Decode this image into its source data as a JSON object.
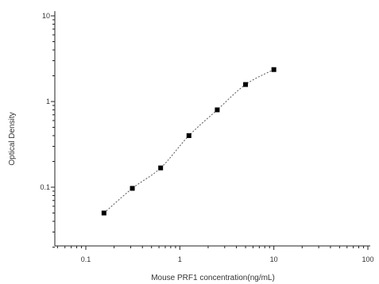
{
  "chart_data": {
    "type": "scatter",
    "xlabel": "Mouse PRF1 concentration(ng/mL)",
    "ylabel": "Optical Density",
    "x_scale": "log",
    "y_scale": "log",
    "xlim": [
      0.05,
      100
    ],
    "ylim": [
      0.015,
      10
    ],
    "x_ticks": [
      0.1,
      1,
      10,
      100
    ],
    "x_tick_labels": [
      "0.1",
      "1",
      "10",
      "100"
    ],
    "y_ticks": [
      0.1,
      1,
      10
    ],
    "y_tick_labels": [
      "0.1",
      "1",
      "10"
    ],
    "grid": false,
    "series": [
      {
        "marker": "square",
        "color": "#000000",
        "x": [
          0.156,
          0.3125,
          0.625,
          1.25,
          2.5,
          5,
          10
        ],
        "y": [
          0.05,
          0.097,
          0.168,
          0.4,
          0.8,
          1.58,
          2.36
        ]
      }
    ],
    "fit_line": {
      "style": "dotted",
      "color": "#555555"
    }
  }
}
